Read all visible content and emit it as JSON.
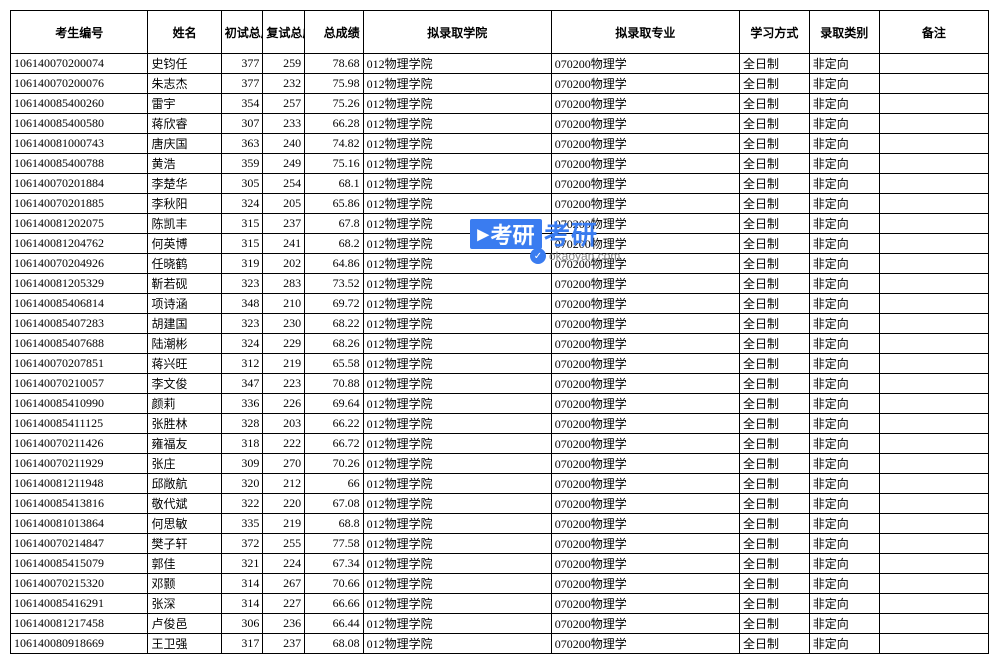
{
  "headers": {
    "id": "考生编号",
    "name": "姓名",
    "s1": "初试总成绩",
    "s2": "复试总成绩",
    "total": "总成绩",
    "college": "拟录取学院",
    "major": "拟录取专业",
    "mode": "学习方式",
    "type": "录取类别",
    "remark": "备注"
  },
  "watermark": {
    "badge": "考研",
    "text": "考研",
    "url": "okaoyan.com"
  },
  "rows": [
    {
      "id": "106140070200074",
      "name": "史钧任",
      "s1": "377",
      "s2": "259",
      "total": "78.68",
      "college": "012物理学院",
      "major": "070200物理学",
      "mode": "全日制",
      "type": "非定向",
      "remark": ""
    },
    {
      "id": "106140070200076",
      "name": "朱志杰",
      "s1": "377",
      "s2": "232",
      "total": "75.98",
      "college": "012物理学院",
      "major": "070200物理学",
      "mode": "全日制",
      "type": "非定向",
      "remark": ""
    },
    {
      "id": "106140085400260",
      "name": "雷宇",
      "s1": "354",
      "s2": "257",
      "total": "75.26",
      "college": "012物理学院",
      "major": "070200物理学",
      "mode": "全日制",
      "type": "非定向",
      "remark": ""
    },
    {
      "id": "106140085400580",
      "name": "蒋欣睿",
      "s1": "307",
      "s2": "233",
      "total": "66.28",
      "college": "012物理学院",
      "major": "070200物理学",
      "mode": "全日制",
      "type": "非定向",
      "remark": ""
    },
    {
      "id": "106140081000743",
      "name": "唐庆国",
      "s1": "363",
      "s2": "240",
      "total": "74.82",
      "college": "012物理学院",
      "major": "070200物理学",
      "mode": "全日制",
      "type": "非定向",
      "remark": ""
    },
    {
      "id": "106140085400788",
      "name": "黄浩",
      "s1": "359",
      "s2": "249",
      "total": "75.16",
      "college": "012物理学院",
      "major": "070200物理学",
      "mode": "全日制",
      "type": "非定向",
      "remark": ""
    },
    {
      "id": "106140070201884",
      "name": "李楚华",
      "s1": "305",
      "s2": "254",
      "total": "68.1",
      "college": "012物理学院",
      "major": "070200物理学",
      "mode": "全日制",
      "type": "非定向",
      "remark": ""
    },
    {
      "id": "106140070201885",
      "name": "李秋阳",
      "s1": "324",
      "s2": "205",
      "total": "65.86",
      "college": "012物理学院",
      "major": "070200物理学",
      "mode": "全日制",
      "type": "非定向",
      "remark": ""
    },
    {
      "id": "106140081202075",
      "name": "陈凯丰",
      "s1": "315",
      "s2": "237",
      "total": "67.8",
      "college": "012物理学院",
      "major": "070200物理学",
      "mode": "全日制",
      "type": "非定向",
      "remark": ""
    },
    {
      "id": "106140081204762",
      "name": "何英博",
      "s1": "315",
      "s2": "241",
      "total": "68.2",
      "college": "012物理学院",
      "major": "070200物理学",
      "mode": "全日制",
      "type": "非定向",
      "remark": ""
    },
    {
      "id": "106140070204926",
      "name": "任晓鹤",
      "s1": "319",
      "s2": "202",
      "total": "64.86",
      "college": "012物理学院",
      "major": "070200物理学",
      "mode": "全日制",
      "type": "非定向",
      "remark": ""
    },
    {
      "id": "106140081205329",
      "name": "靳若砚",
      "s1": "323",
      "s2": "283",
      "total": "73.52",
      "college": "012物理学院",
      "major": "070200物理学",
      "mode": "全日制",
      "type": "非定向",
      "remark": ""
    },
    {
      "id": "106140085406814",
      "name": "项诗涵",
      "s1": "348",
      "s2": "210",
      "total": "69.72",
      "college": "012物理学院",
      "major": "070200物理学",
      "mode": "全日制",
      "type": "非定向",
      "remark": ""
    },
    {
      "id": "106140085407283",
      "name": "胡建国",
      "s1": "323",
      "s2": "230",
      "total": "68.22",
      "college": "012物理学院",
      "major": "070200物理学",
      "mode": "全日制",
      "type": "非定向",
      "remark": ""
    },
    {
      "id": "106140085407688",
      "name": "陆潮彬",
      "s1": "324",
      "s2": "229",
      "total": "68.26",
      "college": "012物理学院",
      "major": "070200物理学",
      "mode": "全日制",
      "type": "非定向",
      "remark": ""
    },
    {
      "id": "106140070207851",
      "name": "蒋兴旺",
      "s1": "312",
      "s2": "219",
      "total": "65.58",
      "college": "012物理学院",
      "major": "070200物理学",
      "mode": "全日制",
      "type": "非定向",
      "remark": ""
    },
    {
      "id": "106140070210057",
      "name": "李文俊",
      "s1": "347",
      "s2": "223",
      "total": "70.88",
      "college": "012物理学院",
      "major": "070200物理学",
      "mode": "全日制",
      "type": "非定向",
      "remark": ""
    },
    {
      "id": "106140085410990",
      "name": "颜莉",
      "s1": "336",
      "s2": "226",
      "total": "69.64",
      "college": "012物理学院",
      "major": "070200物理学",
      "mode": "全日制",
      "type": "非定向",
      "remark": ""
    },
    {
      "id": "106140085411125",
      "name": "张胜林",
      "s1": "328",
      "s2": "203",
      "total": "66.22",
      "college": "012物理学院",
      "major": "070200物理学",
      "mode": "全日制",
      "type": "非定向",
      "remark": ""
    },
    {
      "id": "106140070211426",
      "name": "雍福友",
      "s1": "318",
      "s2": "222",
      "total": "66.72",
      "college": "012物理学院",
      "major": "070200物理学",
      "mode": "全日制",
      "type": "非定向",
      "remark": ""
    },
    {
      "id": "106140070211929",
      "name": "张庄",
      "s1": "309",
      "s2": "270",
      "total": "70.26",
      "college": "012物理学院",
      "major": "070200物理学",
      "mode": "全日制",
      "type": "非定向",
      "remark": ""
    },
    {
      "id": "106140081211948",
      "name": "邱敞航",
      "s1": "320",
      "s2": "212",
      "total": "66",
      "college": "012物理学院",
      "major": "070200物理学",
      "mode": "全日制",
      "type": "非定向",
      "remark": ""
    },
    {
      "id": "106140085413816",
      "name": "敬代斌",
      "s1": "322",
      "s2": "220",
      "total": "67.08",
      "college": "012物理学院",
      "major": "070200物理学",
      "mode": "全日制",
      "type": "非定向",
      "remark": ""
    },
    {
      "id": "106140081013864",
      "name": "何思敏",
      "s1": "335",
      "s2": "219",
      "total": "68.8",
      "college": "012物理学院",
      "major": "070200物理学",
      "mode": "全日制",
      "type": "非定向",
      "remark": ""
    },
    {
      "id": "106140070214847",
      "name": "樊子轩",
      "s1": "372",
      "s2": "255",
      "total": "77.58",
      "college": "012物理学院",
      "major": "070200物理学",
      "mode": "全日制",
      "type": "非定向",
      "remark": ""
    },
    {
      "id": "106140085415079",
      "name": "郭佳",
      "s1": "321",
      "s2": "224",
      "total": "67.34",
      "college": "012物理学院",
      "major": "070200物理学",
      "mode": "全日制",
      "type": "非定向",
      "remark": ""
    },
    {
      "id": "106140070215320",
      "name": "邓颢",
      "s1": "314",
      "s2": "267",
      "total": "70.66",
      "college": "012物理学院",
      "major": "070200物理学",
      "mode": "全日制",
      "type": "非定向",
      "remark": ""
    },
    {
      "id": "106140085416291",
      "name": "张深",
      "s1": "314",
      "s2": "227",
      "total": "66.66",
      "college": "012物理学院",
      "major": "070200物理学",
      "mode": "全日制",
      "type": "非定向",
      "remark": ""
    },
    {
      "id": "106140081217458",
      "name": "卢俊邑",
      "s1": "306",
      "s2": "236",
      "total": "66.44",
      "college": "012物理学院",
      "major": "070200物理学",
      "mode": "全日制",
      "type": "非定向",
      "remark": ""
    },
    {
      "id": "106140080918669",
      "name": "王卫强",
      "s1": "317",
      "s2": "237",
      "total": "68.08",
      "college": "012物理学院",
      "major": "070200物理学",
      "mode": "全日制",
      "type": "非定向",
      "remark": ""
    }
  ]
}
